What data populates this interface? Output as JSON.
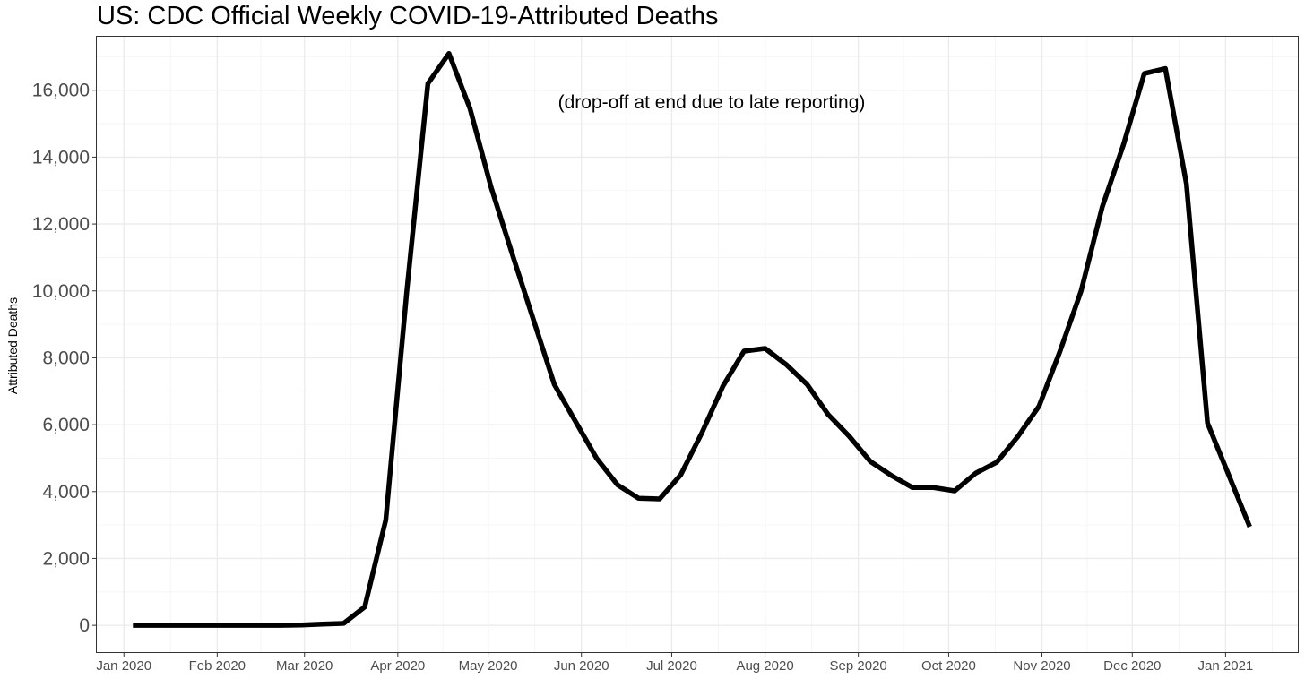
{
  "chart_data": {
    "type": "line",
    "title": "US: CDC Official Weekly COVID-19-Attributed Deaths",
    "xlabel": "",
    "ylabel": "Attributed Deaths",
    "annotation": "(drop-off at end due to late reporting)",
    "ylim": [
      -800,
      17600
    ],
    "y_ticks": [
      0,
      2000,
      4000,
      6000,
      8000,
      10000,
      12000,
      14000,
      16000
    ],
    "y_tick_labels": [
      "0",
      "2,000",
      "4,000",
      "6,000",
      "8,000",
      "10,000",
      "12,000",
      "14,000",
      "16,000"
    ],
    "xlim": [
      "2019-12-23",
      "2021-01-25"
    ],
    "x_ticks": [
      "2020-01-01",
      "2020-02-01",
      "2020-03-01",
      "2020-04-01",
      "2020-05-01",
      "2020-06-01",
      "2020-07-01",
      "2020-08-01",
      "2020-09-01",
      "2020-10-01",
      "2020-11-01",
      "2020-12-01",
      "2021-01-01"
    ],
    "x_tick_labels": [
      "Jan 2020",
      "Feb 2020",
      "Mar 2020",
      "Apr 2020",
      "May 2020",
      "Jun 2020",
      "Jul 2020",
      "Aug 2020",
      "Sep 2020",
      "Oct 2020",
      "Nov 2020",
      "Dec 2020",
      "Jan 2021"
    ],
    "grid": true,
    "series": [
      {
        "name": "Attributed Deaths",
        "color": "#000000",
        "x": [
          "2020-01-04",
          "2020-01-11",
          "2020-01-18",
          "2020-01-25",
          "2020-02-01",
          "2020-02-08",
          "2020-02-15",
          "2020-02-22",
          "2020-02-29",
          "2020-03-07",
          "2020-03-14",
          "2020-03-21",
          "2020-03-28",
          "2020-04-04",
          "2020-04-11",
          "2020-04-18",
          "2020-04-25",
          "2020-05-02",
          "2020-05-09",
          "2020-05-16",
          "2020-05-23",
          "2020-05-30",
          "2020-06-06",
          "2020-06-13",
          "2020-06-20",
          "2020-06-27",
          "2020-07-04",
          "2020-07-11",
          "2020-07-18",
          "2020-07-25",
          "2020-08-01",
          "2020-08-08",
          "2020-08-15",
          "2020-08-22",
          "2020-08-29",
          "2020-09-05",
          "2020-09-12",
          "2020-09-19",
          "2020-09-26",
          "2020-10-03",
          "2020-10-10",
          "2020-10-17",
          "2020-10-24",
          "2020-10-31",
          "2020-11-07",
          "2020-11-14",
          "2020-11-21",
          "2020-11-28",
          "2020-12-05",
          "2020-12-12",
          "2020-12-19",
          "2020-12-26",
          "2021-01-02",
          "2021-01-09"
        ],
        "values": [
          0,
          0,
          2,
          2,
          0,
          0,
          0,
          2,
          10,
          35,
          60,
          550,
          3150,
          10000,
          16200,
          17100,
          15450,
          13100,
          11100,
          9150,
          7200,
          6100,
          5000,
          4200,
          3800,
          3780,
          4500,
          5750,
          7150,
          8200,
          8280,
          7800,
          7200,
          6300,
          5650,
          4900,
          4480,
          4120,
          4120,
          4020,
          4550,
          4880,
          5650,
          6550,
          8200,
          10000,
          12500,
          14350,
          16500,
          16650,
          13200,
          6050,
          4500,
          2950
        ]
      }
    ]
  }
}
